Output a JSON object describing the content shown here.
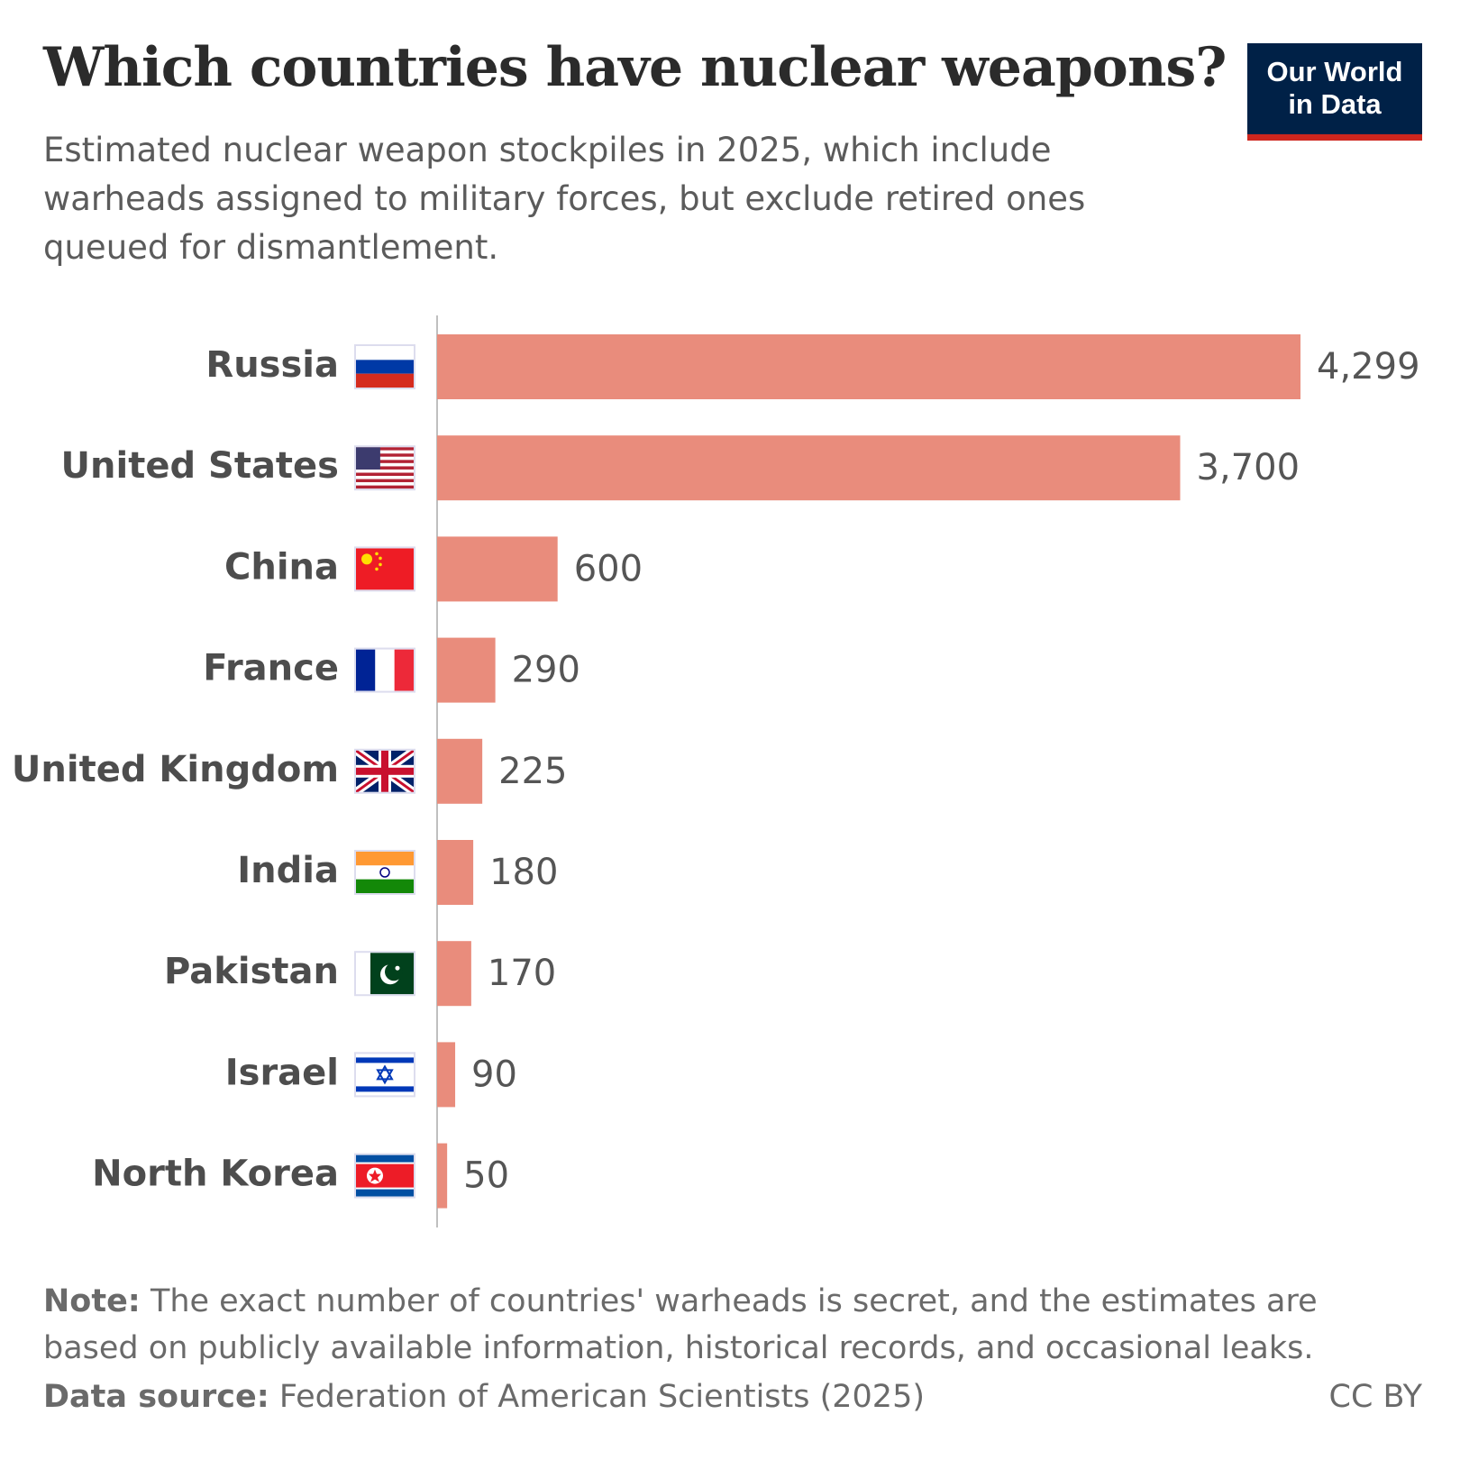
{
  "chart_data": {
    "type": "bar",
    "orientation": "horizontal",
    "title": "Which countries have nuclear weapons?",
    "subtitle": "Estimated nuclear weapon stockpiles in 2025, which include warheads assigned to military forces, but exclude retired ones queued for dismantlement.",
    "categories": [
      "Russia",
      "United States",
      "China",
      "France",
      "United Kingdom",
      "India",
      "Pakistan",
      "Israel",
      "North Korea"
    ],
    "values": [
      4299,
      3700,
      600,
      290,
      225,
      180,
      170,
      90,
      50
    ],
    "value_labels": [
      "4,299",
      "3,700",
      "600",
      "290",
      "225",
      "180",
      "170",
      "90",
      "50"
    ],
    "color": "#e98c7c",
    "note_label": "Note:",
    "note": "The exact number of countries' warheads is secret, and the estimates are based on publicly available information, historical records, and occasional leaks.",
    "source_label": "Data source:",
    "source": "Federation of American Scientists (2025)",
    "license": "CC BY",
    "logo": [
      "Our World",
      "in Data"
    ]
  }
}
